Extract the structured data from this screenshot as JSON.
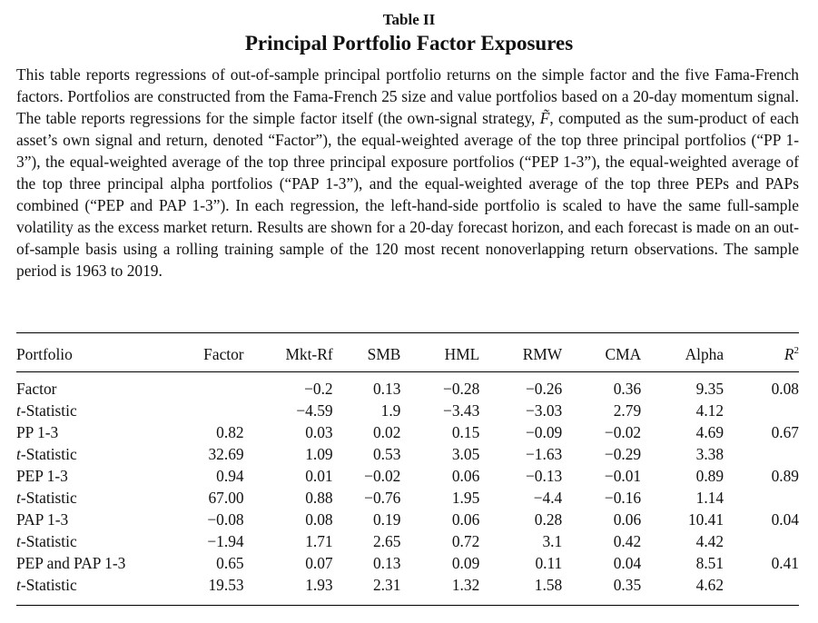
{
  "table_label": "Table II",
  "table_title": "Principal Portfolio Factor Exposures",
  "caption": {
    "part1": "This table reports regressions of out-of-sample principal portfolio returns on the simple factor and the five Fama-French factors. Portfolios are constructed from the Fama-French 25 size and value portfolios based on a 20-day momentum signal. The table reports regressions for the simple factor itself (the own-signal strategy, ",
    "symbol": "F̃",
    "part2": ", computed as the sum-product of each asset’s own signal and return, denoted “Factor”), the equal-weighted average of the top three principal portfolios (“PP 1-3”), the equal-weighted average of the top three principal exposure portfolios (“PEP 1-3”), the equal-weighted average of the top three principal alpha portfolios (“PAP 1-3”), and the equal-weighted average of the top three PEPs and PAPs combined (“PEP and PAP 1-3”). In each regression, the left-hand-side portfolio is scaled to have the same full-sample volatility as the excess market return. Results are shown for a 20-day forecast horizon, and each forecast is made on an out-of-sample basis using a rolling training sample of the 120 most recent nonoverlapping return observations. The sample period is 1963 to 2019."
  },
  "columns": {
    "portfolio": "Portfolio",
    "factor": "Factor",
    "mktrf": "Mkt-Rf",
    "smb": "SMB",
    "hml": "HML",
    "rmw": "RMW",
    "cma": "CMA",
    "alpha": "Alpha",
    "r2_base": "R",
    "r2_sup": "2"
  },
  "rows": [
    {
      "label": "Factor",
      "italic_prefix": "",
      "factor": "",
      "mktrf": "−0.2",
      "smb": "0.13",
      "hml": "−0.28",
      "rmw": "−0.26",
      "cma": "0.36",
      "alpha": "9.35",
      "r2": "0.08"
    },
    {
      "label": "-Statistic",
      "italic_prefix": "t",
      "factor": "",
      "mktrf": "−4.59",
      "smb": "1.9",
      "hml": "−3.43",
      "rmw": "−3.03",
      "cma": "2.79",
      "alpha": "4.12",
      "r2": ""
    },
    {
      "label": "PP 1-3",
      "italic_prefix": "",
      "factor": "0.82",
      "mktrf": "0.03",
      "smb": "0.02",
      "hml": "0.15",
      "rmw": "−0.09",
      "cma": "−0.02",
      "alpha": "4.69",
      "r2": "0.67"
    },
    {
      "label": "-Statistic",
      "italic_prefix": "t",
      "factor": "32.69",
      "mktrf": "1.09",
      "smb": "0.53",
      "hml": "3.05",
      "rmw": "−1.63",
      "cma": "−0.29",
      "alpha": "3.38",
      "r2": ""
    },
    {
      "label": "PEP 1-3",
      "italic_prefix": "",
      "factor": "0.94",
      "mktrf": "0.01",
      "smb": "−0.02",
      "hml": "0.06",
      "rmw": "−0.13",
      "cma": "−0.01",
      "alpha": "0.89",
      "r2": "0.89"
    },
    {
      "label": "-Statistic",
      "italic_prefix": "t",
      "factor": "67.00",
      "mktrf": "0.88",
      "smb": "−0.76",
      "hml": "1.95",
      "rmw": "−4.4",
      "cma": "−0.16",
      "alpha": "1.14",
      "r2": ""
    },
    {
      "label": "PAP 1-3",
      "italic_prefix": "",
      "factor": "−0.08",
      "mktrf": "0.08",
      "smb": "0.19",
      "hml": "0.06",
      "rmw": "0.28",
      "cma": "0.06",
      "alpha": "10.41",
      "r2": "0.04"
    },
    {
      "label": "-Statistic",
      "italic_prefix": "t",
      "factor": "−1.94",
      "mktrf": "1.71",
      "smb": "2.65",
      "hml": "0.72",
      "rmw": "3.1",
      "cma": "0.42",
      "alpha": "4.42",
      "r2": ""
    },
    {
      "label": "PEP and PAP 1-3",
      "italic_prefix": "",
      "factor": "0.65",
      "mktrf": "0.07",
      "smb": "0.13",
      "hml": "0.09",
      "rmw": "0.11",
      "cma": "0.04",
      "alpha": "8.51",
      "r2": "0.41"
    },
    {
      "label": "-Statistic",
      "italic_prefix": "t",
      "factor": "19.53",
      "mktrf": "1.93",
      "smb": "2.31",
      "hml": "1.32",
      "rmw": "1.58",
      "cma": "0.35",
      "alpha": "4.62",
      "r2": ""
    }
  ]
}
